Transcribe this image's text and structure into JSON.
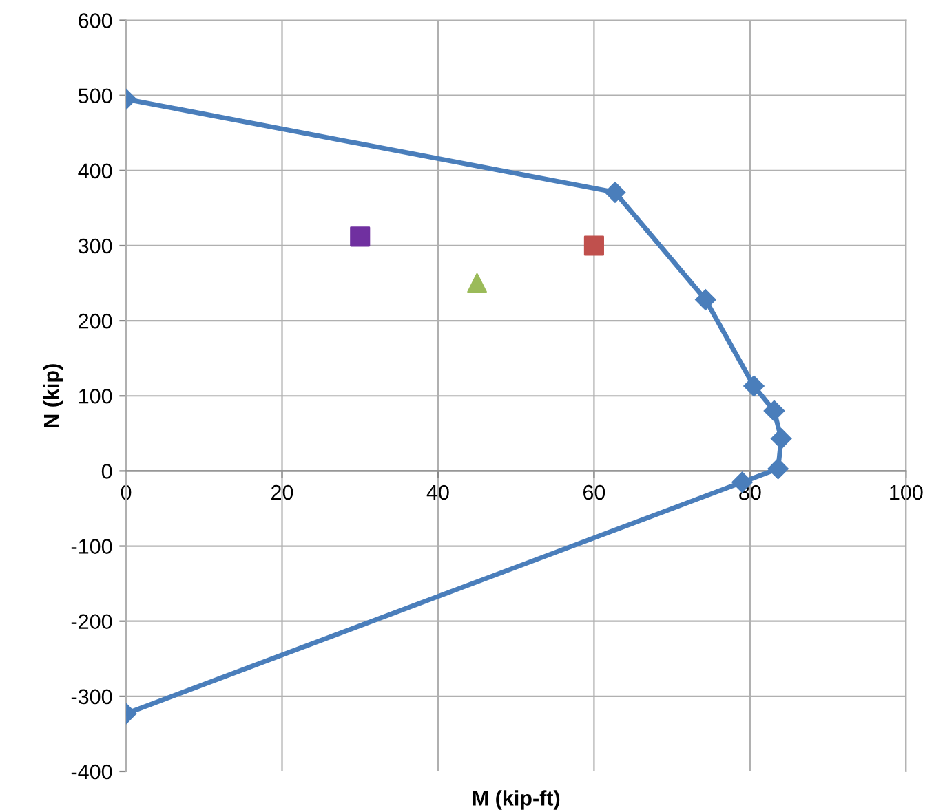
{
  "chart_data": {
    "type": "scatter",
    "xlabel": "M (kip-ft)",
    "ylabel": "N (kip)",
    "xlim": [
      0,
      100
    ],
    "ylim": [
      -400,
      600
    ],
    "xticks": [
      0,
      20,
      40,
      60,
      80,
      100
    ],
    "yticks": [
      -400,
      -300,
      -200,
      -100,
      0,
      100,
      200,
      300,
      400,
      500,
      600
    ],
    "grid": true,
    "legend": false,
    "series": [
      {
        "type": "line",
        "color": "#4a7ebb",
        "marker": "diamond",
        "x": [
          0,
          62.7,
          74.3,
          80.5,
          83.1,
          84,
          83.6,
          79,
          0
        ],
        "values": [
          495,
          371,
          228,
          113,
          80,
          43,
          3,
          -15,
          -323
        ]
      },
      {
        "color": "#7030a0",
        "marker": "square",
        "x": [
          30
        ],
        "values": [
          312
        ]
      },
      {
        "color": "#9bbb59",
        "marker": "triangle",
        "x": [
          45
        ],
        "values": [
          250
        ]
      },
      {
        "color": "#c0504d",
        "marker": "square",
        "x": [
          60
        ],
        "values": [
          300
        ]
      }
    ]
  }
}
